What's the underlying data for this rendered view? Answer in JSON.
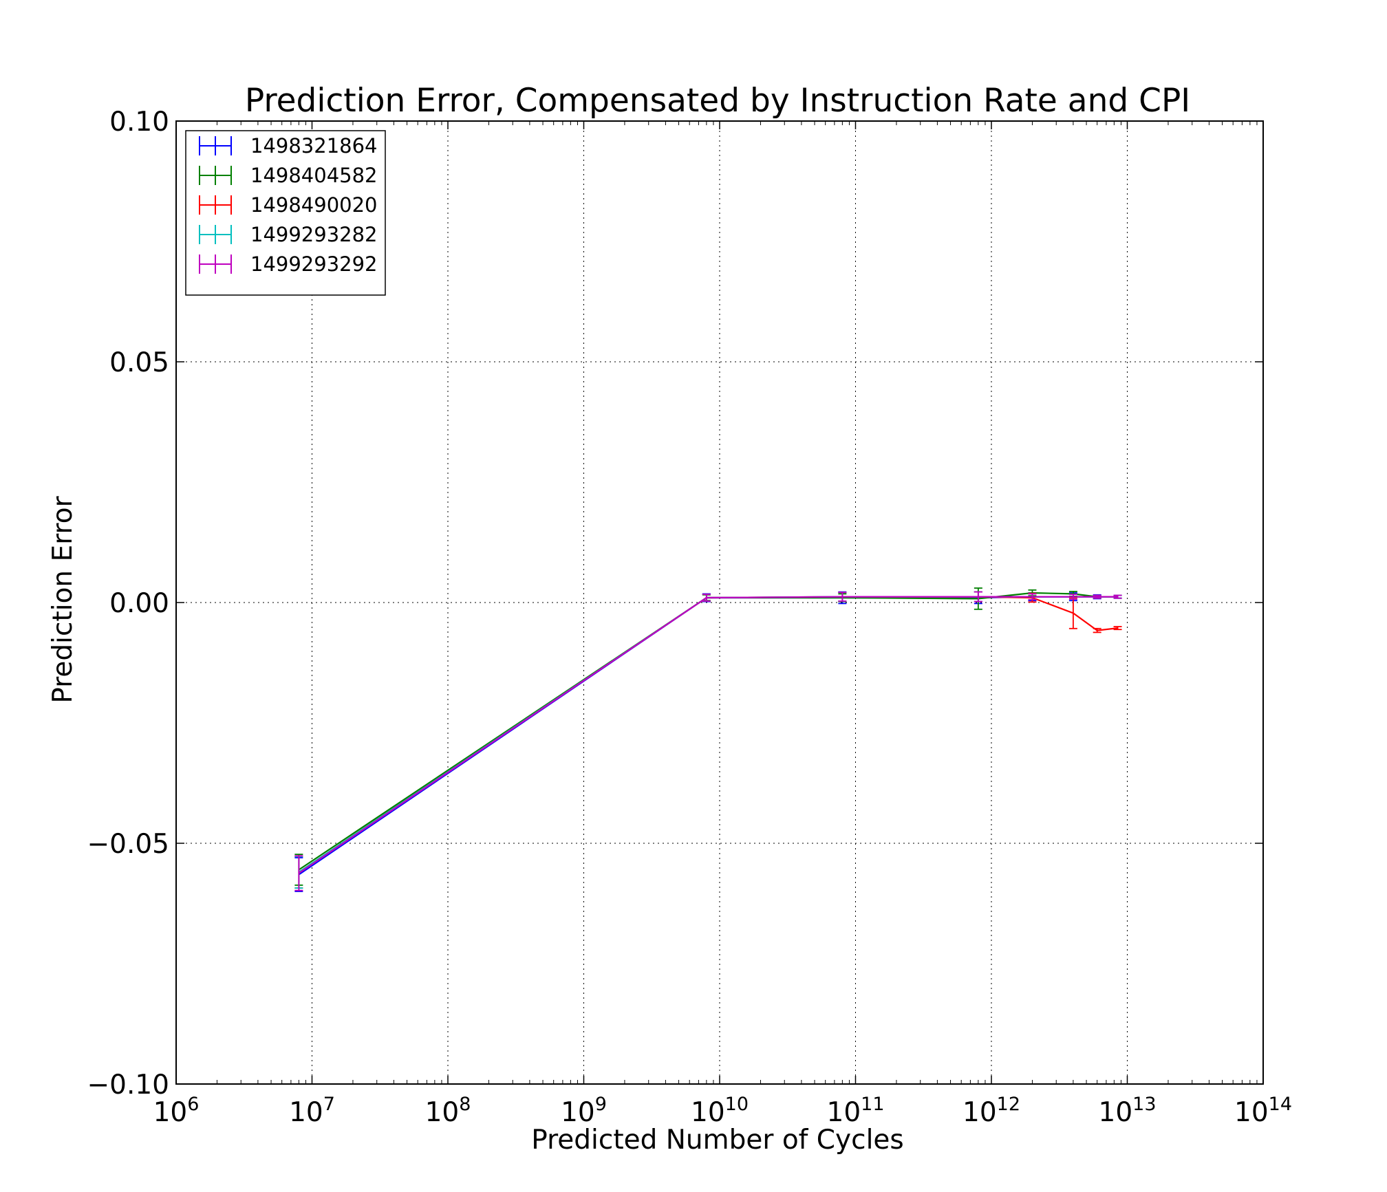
{
  "chart_data": {
    "type": "line",
    "title": "Prediction Error, Compensated by Instruction Rate and CPI",
    "xlabel": "Predicted Number of Cycles",
    "ylabel": "Prediction Error",
    "xscale": "log",
    "xlim": [
      1000000,
      100000000000000
    ],
    "ylim": [
      -0.1,
      0.1
    ],
    "grid": true,
    "legend_position": "top-left",
    "x_ticks": [
      {
        "value": 1000000,
        "base": "10",
        "exp": "6"
      },
      {
        "value": 10000000,
        "base": "10",
        "exp": "7"
      },
      {
        "value": 100000000,
        "base": "10",
        "exp": "8"
      },
      {
        "value": 1000000000,
        "base": "10",
        "exp": "9"
      },
      {
        "value": 10000000000,
        "base": "10",
        "exp": "10"
      },
      {
        "value": 100000000000,
        "base": "10",
        "exp": "11"
      },
      {
        "value": 1000000000000,
        "base": "10",
        "exp": "12"
      },
      {
        "value": 10000000000000,
        "base": "10",
        "exp": "13"
      },
      {
        "value": 100000000000000,
        "base": "10",
        "exp": "14"
      }
    ],
    "y_ticks": [
      {
        "value": 0.1,
        "label": "0.10"
      },
      {
        "value": 0.05,
        "label": "0.05"
      },
      {
        "value": 0.0,
        "label": "0.00"
      },
      {
        "value": -0.05,
        "label": "−0.05"
      },
      {
        "value": -0.1,
        "label": "−0.10"
      }
    ],
    "series": [
      {
        "name": "1498321864",
        "color": "#0000ff",
        "x": [
          8000000,
          8000000000,
          80000000000,
          800000000000,
          2000000000000,
          4000000000000,
          6000000000000,
          8500000000000
        ],
        "y": [
          -0.0565,
          0.001,
          0.001,
          0.001,
          0.0012,
          0.0012,
          0.0012,
          0.0012
        ],
        "err": [
          0.0035,
          0.0008,
          0.0012,
          0.0012,
          0.0008,
          0.0008,
          0.0004,
          0.0003
        ]
      },
      {
        "name": "1498404582",
        "color": "#008000",
        "x": [
          8000000,
          8000000000,
          80000000000,
          800000000000,
          2000000000000,
          4000000000000,
          6000000000000,
          8500000000000
        ],
        "y": [
          -0.0555,
          0.001,
          0.001,
          0.0008,
          0.002,
          0.0018,
          0.0012,
          0.0012
        ],
        "err": [
          0.0032,
          0.0006,
          0.0008,
          0.0022,
          0.0006,
          0.0005,
          0.0003,
          0.0003
        ]
      },
      {
        "name": "1498490020",
        "color": "#ff0000",
        "x": [
          8000000,
          8000000000,
          80000000000,
          800000000000,
          2000000000000,
          4000000000000,
          6000000000000,
          8500000000000
        ],
        "y": [
          -0.056,
          0.001,
          0.0012,
          0.0012,
          0.001,
          -0.0022,
          -0.0058,
          -0.0053
        ],
        "err": [
          0.0033,
          0.0007,
          0.0009,
          0.001,
          0.0009,
          0.0032,
          0.0004,
          0.0003
        ]
      },
      {
        "name": "1499293282",
        "color": "#00bfbf",
        "x": [
          8000000,
          8000000000,
          80000000000,
          800000000000,
          2000000000000,
          4000000000000,
          6000000000000,
          8500000000000
        ],
        "y": [
          -0.056,
          0.001,
          0.0012,
          0.0012,
          0.0012,
          0.0012,
          0.0012,
          0.0012
        ],
        "err": [
          0.0033,
          0.0007,
          0.0009,
          0.001,
          0.0006,
          0.0005,
          0.0003,
          0.0003
        ]
      },
      {
        "name": "1499293292",
        "color": "#bf00bf",
        "x": [
          8000000,
          8000000000,
          80000000000,
          800000000000,
          2000000000000,
          4000000000000,
          6000000000000,
          8500000000000
        ],
        "y": [
          -0.0562,
          0.001,
          0.0012,
          0.0012,
          0.0012,
          0.0012,
          0.0012,
          0.0012
        ],
        "err": [
          0.0036,
          0.0007,
          0.0009,
          0.001,
          0.0006,
          0.0005,
          0.0003,
          0.0003
        ]
      }
    ]
  }
}
